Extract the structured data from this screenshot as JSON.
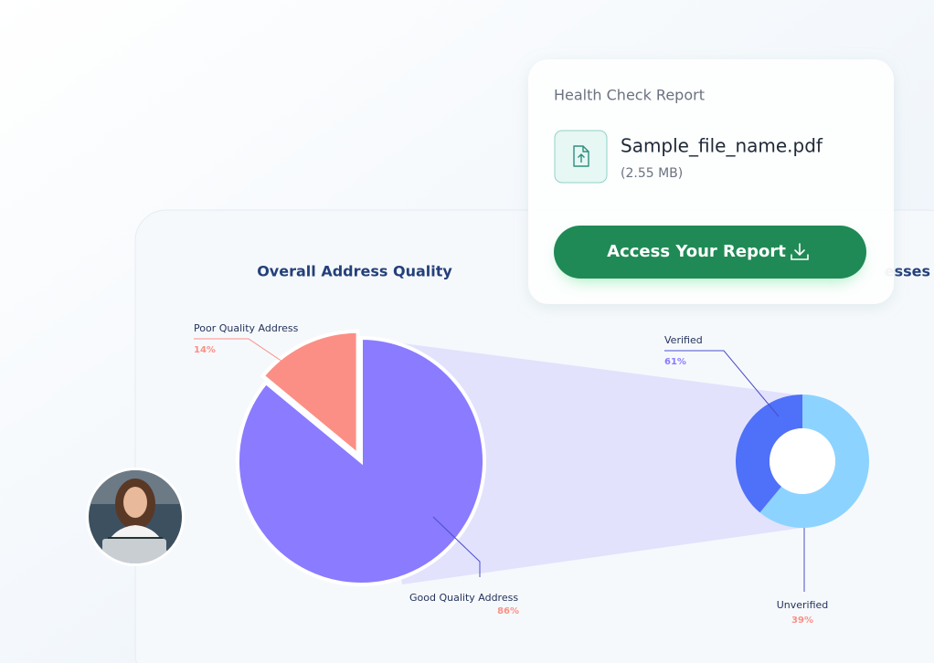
{
  "card": {
    "heading": "Health Check Report",
    "file_name": "Sample_file_name.pdf",
    "file_size": "(2.55 MB)",
    "button": "Access Your Report"
  },
  "chart_data": [
    {
      "type": "pie",
      "title": "Overall Address Quality",
      "categories": [
        "Poor Quality Address",
        "Good Quality Address"
      ],
      "values": [
        14,
        86
      ],
      "value_labels": [
        "14%",
        "86%"
      ],
      "colors": [
        "#fb8f86",
        "#8a7bff"
      ]
    },
    {
      "type": "donut",
      "title": "esses",
      "categories": [
        "Verified",
        "Unverified"
      ],
      "values": [
        61,
        39
      ],
      "value_labels": [
        "61%",
        "39%"
      ],
      "colors": [
        "#8dd3ff",
        "#4f70f8"
      ]
    }
  ]
}
